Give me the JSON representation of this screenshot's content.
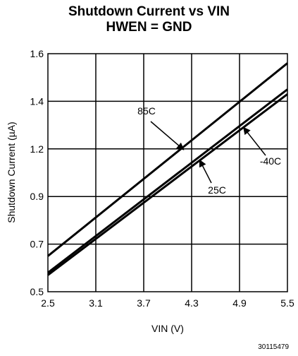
{
  "chart_data": {
    "type": "line",
    "title": "Shutdown Current vs VIN",
    "subtitle": "HWEN = GND",
    "xlabel": "VIN (V)",
    "ylabel": "Shutdown Current (µA)",
    "xlim": [
      2.5,
      5.5
    ],
    "x_ticks": [
      "2.5",
      "3.1",
      "3.7",
      "4.3",
      "4.9",
      "5.5"
    ],
    "y_ticks": [
      "0.5",
      "0.7",
      "0.9",
      "1.2",
      "1.4",
      "1.6"
    ],
    "grid": true,
    "series": [
      {
        "name": "85C",
        "x": [
          2.5,
          5.5
        ],
        "y": [
          0.65,
          1.56
        ]
      },
      {
        "name": "25C",
        "x": [
          2.5,
          5.5
        ],
        "y": [
          0.58,
          1.45
        ]
      },
      {
        "name": "-40C",
        "x": [
          2.5,
          5.5
        ],
        "y": [
          0.57,
          1.43
        ]
      }
    ],
    "annotations": [
      {
        "text": "85C",
        "arrow_to": [
          4.2,
          1.195
        ]
      },
      {
        "text": "-40C",
        "arrow_to": [
          4.95,
          1.29
        ]
      },
      {
        "text": "25C",
        "arrow_to": [
          4.4,
          1.13
        ]
      }
    ]
  },
  "footer": {
    "doc_id": "30115479"
  }
}
